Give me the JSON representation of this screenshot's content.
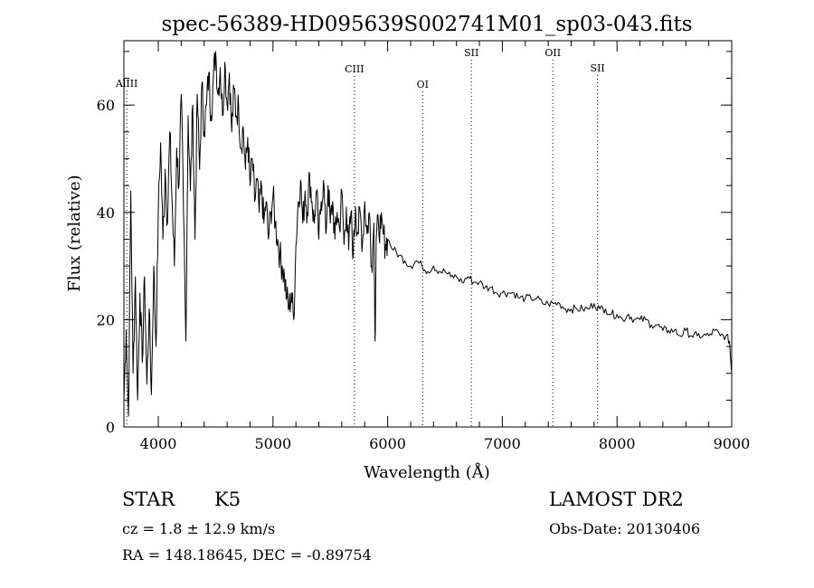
{
  "chart_data": {
    "type": "line",
    "title": "spec-56389-HD095639S002741M01_sp03-043.fits",
    "xlabel": "Wavelength (Å)",
    "ylabel": "Flux (relative)",
    "xlim": [
      3700,
      9000
    ],
    "ylim": [
      0,
      70
    ],
    "xticks": [
      4000,
      5000,
      6000,
      7000,
      8000,
      9000
    ],
    "yticks": [
      0,
      20,
      40,
      60
    ],
    "grid": false,
    "series": [
      {
        "color": "#000000",
        "x": [
          3700,
          3720,
          3740,
          3760,
          3780,
          3800,
          3820,
          3840,
          3860,
          3880,
          3900,
          3920,
          3940,
          3960,
          3980,
          4000,
          4020,
          4040,
          4060,
          4080,
          4100,
          4120,
          4140,
          4160,
          4180,
          4200,
          4220,
          4240,
          4260,
          4280,
          4300,
          4320,
          4340,
          4360,
          4380,
          4400,
          4420,
          4440,
          4460,
          4480,
          4500,
          4520,
          4540,
          4560,
          4580,
          4600,
          4620,
          4640,
          4660,
          4680,
          4700,
          4720,
          4740,
          4760,
          4780,
          4800,
          4820,
          4840,
          4860,
          4880,
          4900,
          4920,
          4940,
          4960,
          4980,
          5000,
          5020,
          5040,
          5060,
          5080,
          5100,
          5120,
          5140,
          5160,
          5180,
          5200,
          5220,
          5240,
          5260,
          5280,
          5300,
          5320,
          5340,
          5360,
          5380,
          5400,
          5420,
          5440,
          5460,
          5480,
          5500,
          5520,
          5540,
          5560,
          5580,
          5600,
          5620,
          5640,
          5660,
          5680,
          5700,
          5720,
          5740,
          5760,
          5780,
          5800,
          5820,
          5840,
          5860,
          5880,
          5890,
          5900,
          5920,
          5940,
          5960,
          5980,
          6000,
          6050,
          6100,
          6150,
          6200,
          6250,
          6300,
          6350,
          6400,
          6450,
          6500,
          6550,
          6600,
          6650,
          6700,
          6750,
          6800,
          6850,
          6900,
          6950,
          7000,
          7050,
          7100,
          7150,
          7200,
          7250,
          7300,
          7350,
          7400,
          7450,
          7500,
          7550,
          7600,
          7650,
          7700,
          7750,
          7800,
          7850,
          7900,
          7950,
          8000,
          8050,
          8100,
          8150,
          8200,
          8250,
          8300,
          8350,
          8400,
          8450,
          8500,
          8550,
          8600,
          8650,
          8700,
          8750,
          8800,
          8850,
          8900,
          8950,
          8980,
          9000
        ],
        "y": [
          5,
          18,
          2,
          44,
          10,
          28,
          5,
          25,
          12,
          28,
          8,
          22,
          6,
          30,
          15,
          40,
          53,
          35,
          48,
          38,
          55,
          42,
          30,
          52,
          45,
          62,
          40,
          16,
          58,
          44,
          60,
          35,
          62,
          48,
          64,
          55,
          60,
          66,
          58,
          65,
          70,
          62,
          67,
          58,
          68,
          60,
          66,
          55,
          63,
          58,
          60,
          52,
          56,
          48,
          54,
          45,
          50,
          42,
          46,
          40,
          45,
          38,
          42,
          35,
          40,
          43,
          38,
          35,
          32,
          30,
          28,
          24,
          22,
          25,
          20,
          34,
          42,
          46,
          38,
          44,
          40,
          47,
          42,
          38,
          44,
          35,
          42,
          46,
          36,
          45,
          38,
          42,
          35,
          40,
          37,
          44,
          34,
          41,
          33,
          40,
          32,
          41,
          36,
          40,
          34,
          42,
          36,
          40,
          30,
          38,
          16,
          35,
          38,
          37,
          36,
          34,
          35,
          33,
          32,
          31,
          30,
          31,
          30,
          29,
          30,
          29,
          29,
          28,
          28,
          27,
          28,
          27,
          27,
          26,
          26,
          25,
          25,
          25,
          25,
          24,
          24,
          24,
          24,
          23,
          23,
          23,
          23,
          22,
          22,
          22,
          22,
          22,
          23,
          22,
          22,
          21,
          21,
          20,
          21,
          20,
          20,
          20,
          19,
          19,
          18,
          18,
          18,
          17,
          18,
          17,
          17,
          17,
          17,
          18,
          17,
          17,
          16,
          10
        ]
      }
    ],
    "lines": [
      {
        "label": "AlIII",
        "x": 3725
      },
      {
        "label": "CIII",
        "x": 5710
      },
      {
        "label": "OI",
        "x": 6305
      },
      {
        "label": "SII",
        "x": 6730
      },
      {
        "label": "OII",
        "x": 7440
      },
      {
        "label": "SII",
        "x": 7830
      }
    ]
  },
  "info": {
    "class_label": "STAR",
    "subclass": "K5",
    "survey": "LAMOST DR2",
    "cz_text": "cz = 1.8 ± 12.9 km/s",
    "obs_date": "Obs-Date: 20130406",
    "radec_text": "RA = 148.18645, DEC =  -0.89754"
  }
}
